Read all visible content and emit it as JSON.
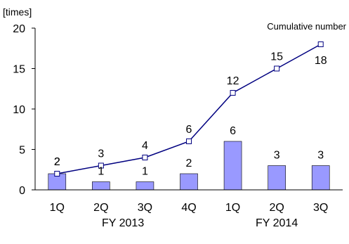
{
  "chart_data": {
    "type": "bar",
    "y_unit_label": "[times]",
    "categories": [
      "1Q",
      "2Q",
      "3Q",
      "4Q",
      "1Q",
      "2Q",
      "3Q"
    ],
    "groups": [
      {
        "label": "FY 2013",
        "span": [
          0,
          3
        ]
      },
      {
        "label": "FY 2014",
        "span": [
          4,
          6
        ]
      }
    ],
    "bar_values": [
      2,
      1,
      1,
      2,
      6,
      3,
      3
    ],
    "series": [
      {
        "name": "Cumulative number",
        "type": "line",
        "values": [
          2,
          3,
          4,
          6,
          12,
          15,
          18
        ]
      }
    ],
    "y_ticks": [
      0,
      5,
      10,
      15,
      20
    ],
    "ylim": [
      0,
      20
    ],
    "grid": false,
    "colors": {
      "bar_fill": "#9999ff",
      "bar_stroke": "#000000",
      "line": "#000080",
      "marker_fill": "#ffffff"
    }
  }
}
